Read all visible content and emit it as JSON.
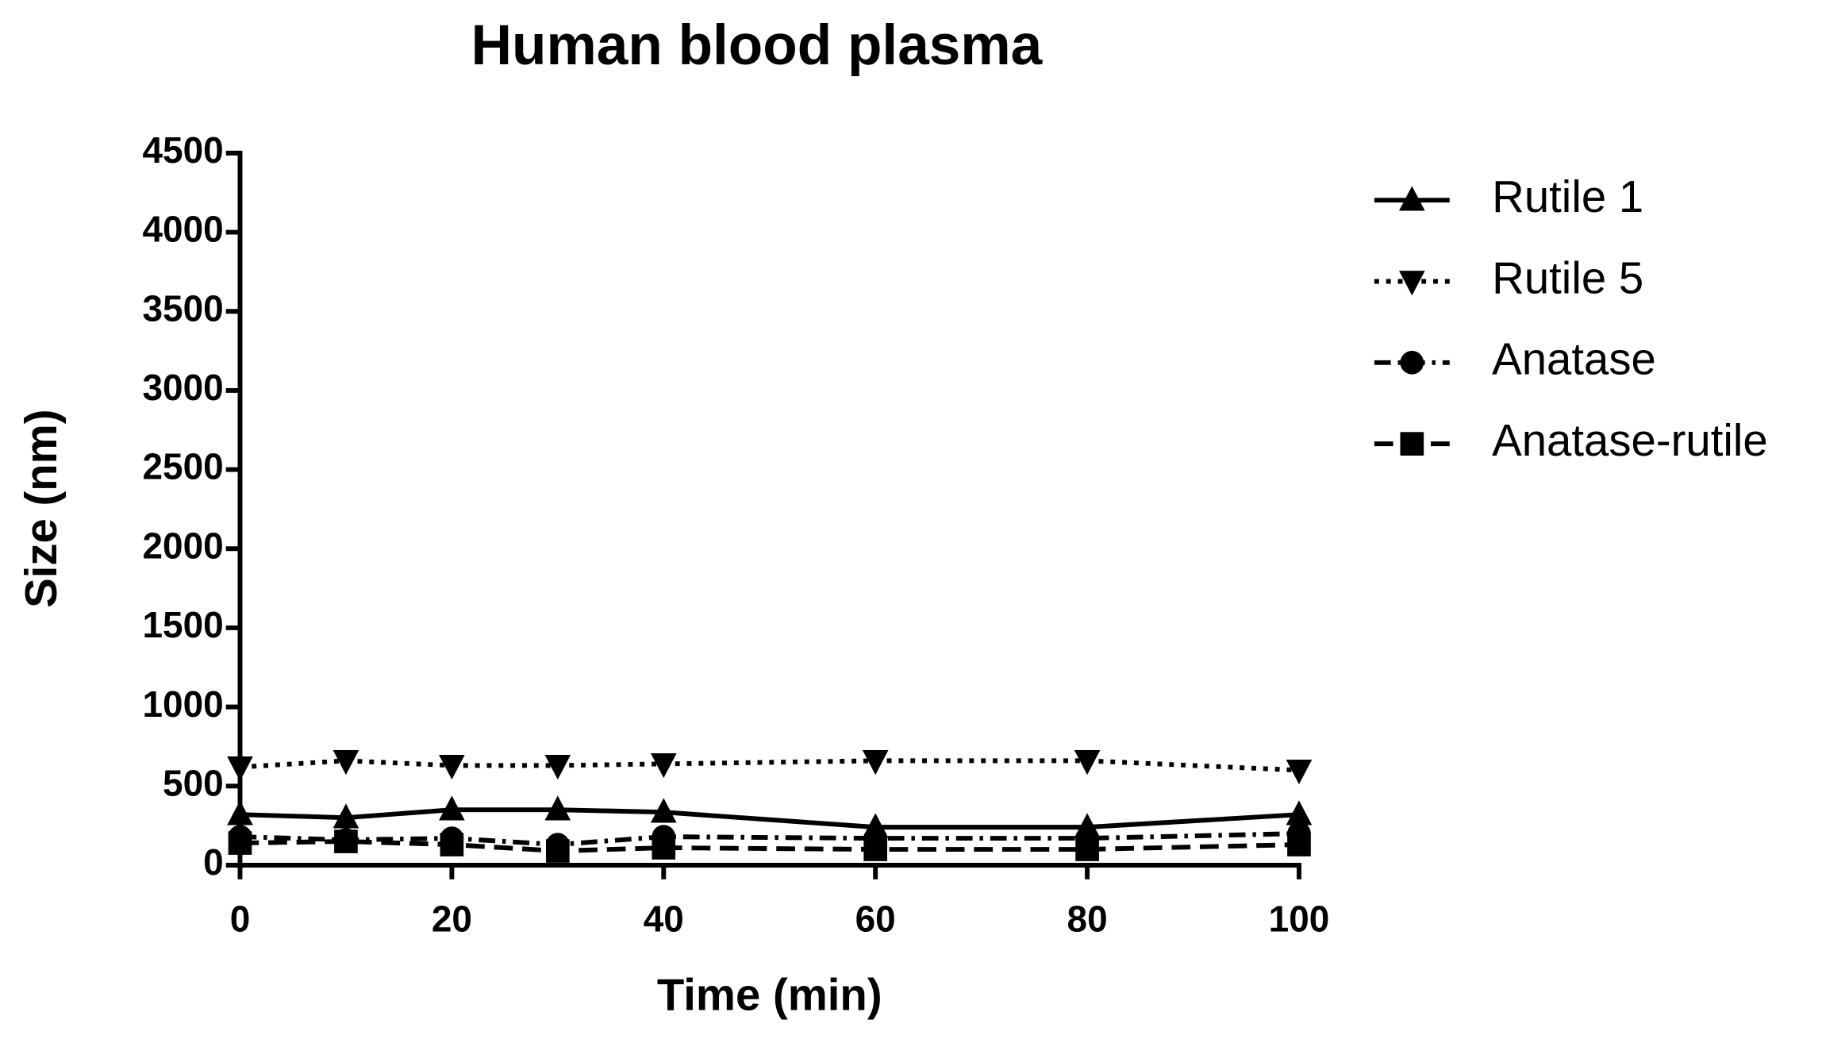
{
  "chart_data": {
    "type": "line",
    "title": "Human blood plasma",
    "x_label": "Time (min)",
    "y_label": "Size (nm)",
    "x": [
      0,
      10,
      20,
      30,
      40,
      60,
      80,
      100
    ],
    "series": [
      {
        "name": "Rutile 1",
        "color": "#000000",
        "dash": "solid",
        "marker": "triangle-up",
        "values": [
          320,
          300,
          350,
          350,
          335,
          240,
          240,
          320
        ]
      },
      {
        "name": "Rutile 5",
        "color": "#000000",
        "dash": "dotted",
        "marker": "triangle-down",
        "values": [
          620,
          660,
          630,
          630,
          640,
          660,
          660,
          600
        ]
      },
      {
        "name": "Anatase",
        "color": "#000000",
        "dash": "dashdot",
        "marker": "circle",
        "values": [
          180,
          160,
          170,
          130,
          180,
          170,
          170,
          200
        ]
      },
      {
        "name": "Anatase-rutile",
        "color": "#000000",
        "dash": "dashed",
        "marker": "square",
        "values": [
          140,
          150,
          130,
          90,
          110,
          100,
          100,
          130
        ]
      }
    ],
    "xlim": [
      0,
      100
    ],
    "xticks": [
      0,
      20,
      40,
      60,
      80,
      100
    ],
    "ylim": [
      0,
      4500
    ],
    "yticks": [
      0,
      500,
      1000,
      1500,
      2000,
      2500,
      3000,
      3500,
      4000,
      4500
    ],
    "grid": false,
    "legend": "right"
  }
}
